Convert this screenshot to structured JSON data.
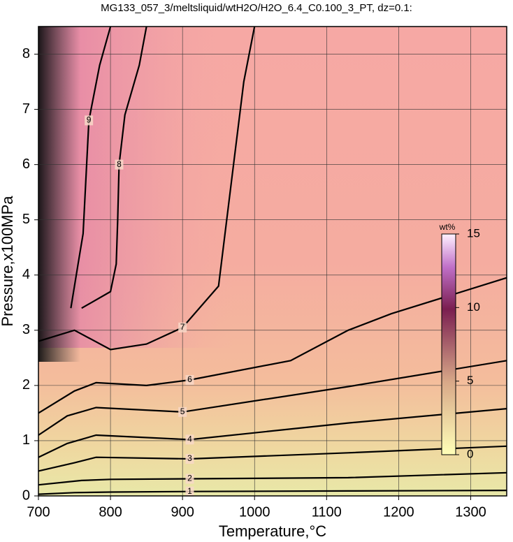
{
  "chart_data": {
    "type": "contour",
    "title": "MG133_057_3/meltsliquid/wtH2O/H2O_6.4_C0.100_3_PT, dz=0.1:",
    "x_label": "Temperature,°C",
    "y_label": "Pressure,x100MPa",
    "xlim": [
      700,
      1350
    ],
    "ylim": [
      0,
      8.5
    ],
    "xticks": [
      700,
      800,
      900,
      1000,
      1100,
      1200,
      1300
    ],
    "yticks": [
      0,
      1,
      2,
      3,
      4,
      5,
      6,
      7,
      8
    ],
    "grid": true,
    "colorbar": {
      "label": "wt%",
      "lim": [
        0,
        15
      ],
      "ticks": [
        0,
        5,
        10,
        15
      ]
    },
    "contours": [
      {
        "level": 1,
        "x": [
          700,
          750,
          800,
          910,
          1130,
          1350
        ],
        "y": [
          0.03,
          0.06,
          0.07,
          0.08,
          0.09,
          0.1
        ]
      },
      {
        "level": 2,
        "x": [
          700,
          760,
          800,
          910,
          1130,
          1350
        ],
        "y": [
          0.2,
          0.28,
          0.3,
          0.31,
          0.33,
          0.42
        ]
      },
      {
        "level": 3,
        "x": [
          700,
          750,
          780,
          910,
          1130,
          1350
        ],
        "y": [
          0.45,
          0.6,
          0.7,
          0.67,
          0.78,
          0.9
        ]
      },
      {
        "level": 4,
        "x": [
          700,
          740,
          780,
          910,
          1130,
          1350
        ],
        "y": [
          0.7,
          0.95,
          1.1,
          1.02,
          1.32,
          1.58
        ]
      },
      {
        "level": 5,
        "x": [
          700,
          740,
          780,
          900,
          1130,
          1350
        ],
        "y": [
          1.1,
          1.45,
          1.6,
          1.52,
          1.98,
          2.45
        ]
      },
      {
        "level": 6,
        "x": [
          700,
          750,
          780,
          850,
          910,
          1050,
          1130,
          1190,
          1350
        ],
        "y": [
          1.5,
          1.9,
          2.05,
          2.0,
          2.1,
          2.45,
          3.0,
          3.3,
          3.95
        ]
      },
      {
        "level": 7,
        "x": [
          700,
          750,
          800,
          850,
          900,
          950,
          968,
          985,
          1000
        ],
        "y": [
          2.8,
          3.0,
          2.65,
          2.75,
          3.05,
          3.8,
          5.7,
          7.5,
          8.5
        ]
      },
      {
        "level": 8,
        "x": [
          760,
          800,
          808,
          810,
          812,
          820,
          840,
          850
        ],
        "y": [
          3.4,
          3.7,
          4.2,
          5.0,
          6.0,
          6.9,
          7.8,
          8.5
        ]
      },
      {
        "level": 9,
        "x": [
          745,
          755,
          762,
          770,
          785,
          800
        ],
        "y": [
          3.4,
          4.2,
          4.75,
          6.8,
          7.8,
          8.5
        ]
      }
    ]
  }
}
